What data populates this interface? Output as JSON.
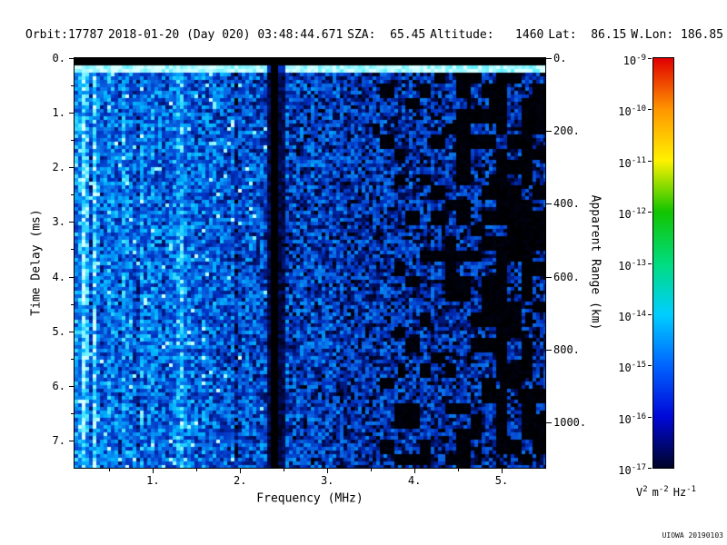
{
  "app": {
    "credit": "UIOWA 20190103"
  },
  "header": {
    "orbit": "Orbit:17787",
    "datetime": "2018-01-20 (Day 020) 03:48:44.671",
    "sza": "SZA:  65.45",
    "altitude": "Altitude:   1460",
    "lat": "Lat:  86.15",
    "wlon": "W.Lon: 186.85"
  },
  "chart_data": {
    "type": "heatmap",
    "title": "",
    "description": "Radar sounder ionogram: received spectral density (V^2 m^-2 Hz^-1, log color scale 1e-9 red to 1e-17 dark navy) versus frequency (MHz) and time delay (ms). Mostly blue noise, brightest below 1.5 MHz with vertical cyan striping, a strong bright cyan line near 1.31 MHz, a black absorption band near 2.40 MHz spanning all delays, increasing black dropout speckle above 3.3 MHz, a black band at zero delay and a bright cyan horizontal surface-echo line near 0.15-0.24 ms across all frequencies.",
    "x_axis": {
      "label": "Frequency (MHz)",
      "min": 0.1,
      "max": 5.5,
      "ticks": [
        1,
        2,
        3,
        4,
        5
      ],
      "tick_labels": [
        "1.",
        "2.",
        "3.",
        "4.",
        "5."
      ],
      "minor_step": 0.5
    },
    "y_axis": {
      "label": "Time Delay (ms)",
      "min": 0,
      "max": 7.5,
      "ticks": [
        0,
        1,
        2,
        3,
        4,
        5,
        6,
        7
      ],
      "tick_labels": [
        "0.",
        "1.",
        "2.",
        "3.",
        "4.",
        "5.",
        "6.",
        "7."
      ],
      "minor_step": 0.5
    },
    "y2_axis": {
      "label": "Apparent Range (km)",
      "min": 0,
      "max": 1125,
      "ticks": [
        0,
        200,
        400,
        600,
        800,
        1000
      ],
      "tick_labels": [
        "0.",
        "200.",
        "400.",
        "600.",
        "800.",
        "1000."
      ]
    },
    "colorbar": {
      "mantissa": "10",
      "exponents": [
        "-9",
        "-10",
        "-11",
        "-12",
        "-13",
        "-14",
        "-15",
        "-16",
        "-17"
      ],
      "colors": [
        "#e00000",
        "#ff9500",
        "#fff200",
        "#12c400",
        "#00dc7d",
        "#00cfff",
        "#0064ff",
        "#0008d8",
        "#000428"
      ],
      "unit": {
        "q1": "V",
        "e1": "2",
        "q2": "m",
        "e2": "-2",
        "q3": "Hz",
        "e3": "-1"
      }
    },
    "heatmap_colors": [
      {
        "v": 0.0,
        "c": "#000000"
      },
      {
        "v": 0.13,
        "c": "#000a50"
      },
      {
        "v": 0.3,
        "c": "#0030c0"
      },
      {
        "v": 0.5,
        "c": "#0a6ae6"
      },
      {
        "v": 0.68,
        "c": "#00b4ff"
      },
      {
        "v": 0.85,
        "c": "#55eeff"
      },
      {
        "v": 1.0,
        "c": "#d8ffff"
      }
    ],
    "features": {
      "seed": 20190103,
      "base_levels": [
        {
          "f": 0.1,
          "v": 0.54
        },
        {
          "f": 0.9,
          "v": 0.5
        },
        {
          "f": 1.15,
          "v": 0.44
        },
        {
          "f": 1.3,
          "v": 0.52
        },
        {
          "f": 1.6,
          "v": 0.44
        },
        {
          "f": 2.3,
          "v": 0.4
        },
        {
          "f": 2.6,
          "v": 0.38
        },
        {
          "f": 3.3,
          "v": 0.32
        },
        {
          "f": 4.3,
          "v": 0.27
        },
        {
          "f": 5.5,
          "v": 0.25
        }
      ],
      "bright_lines": [
        {
          "f": 0.14,
          "w": 0.02,
          "b": 0.3
        },
        {
          "f": 0.22,
          "w": 0.03,
          "b": 0.5
        },
        {
          "f": 0.33,
          "w": 0.022,
          "b": 0.34
        },
        {
          "f": 0.52,
          "w": 0.02,
          "b": 0.22
        },
        {
          "f": 1.06,
          "w": 0.018,
          "b": 0.2
        },
        {
          "f": 1.31,
          "w": 0.028,
          "b": 0.55
        }
      ],
      "dark_lines": [
        {
          "f": 0.4,
          "w": 0.018,
          "d": 0.75
        },
        {
          "f": 0.72,
          "w": 0.014,
          "d": 0.35
        },
        {
          "f": 1.95,
          "w": 0.02,
          "d": 0.25
        }
      ],
      "black_band": {
        "f": 2.4,
        "hw": 0.055,
        "soft": 0.1
      },
      "surface_line": {
        "t0": 0.1,
        "t1": 0.24,
        "v": 0.92
      },
      "top_black_ms": 0.1,
      "dropout_start_f": 3.3,
      "dropout_max": 0.62,
      "dropout_rate": 0.3,
      "speckle_bright_prob": 0.02,
      "speckle_black_prob": 0.04
    }
  }
}
